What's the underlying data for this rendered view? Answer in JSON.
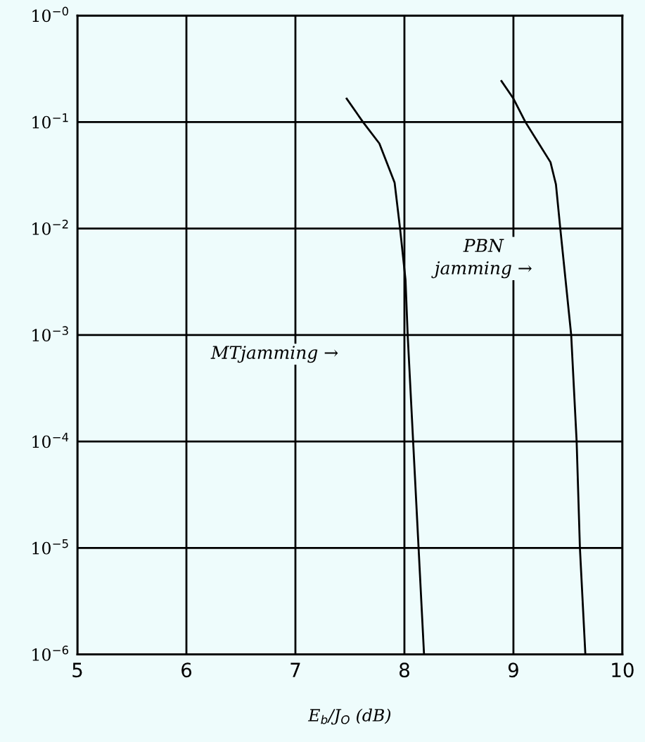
{
  "chart_data": {
    "type": "line",
    "xlabel": "E$_{b}$/J$_{O}$ (dB)",
    "log": "y",
    "grid": true,
    "marker": "none",
    "line_style": "solid",
    "xlim": [
      5,
      10
    ],
    "xticks": [
      5,
      6,
      7,
      8,
      9,
      10
    ],
    "ylim": [
      1e-06,
      1
    ],
    "yticks": [
      {
        "value": 1,
        "label": "10$^{−0}$"
      },
      {
        "value": 0.1,
        "label": "10$^{−1}$"
      },
      {
        "value": 0.01,
        "label": "10$^{−2}$"
      },
      {
        "value": 0.001,
        "label": "10$^{−3}$"
      },
      {
        "value": 0.0001,
        "label": "10$^{−4}$"
      },
      {
        "value": 1e-05,
        "label": "10$^{−5}$"
      },
      {
        "value": 1e-06,
        "label": "10$^{−6}$"
      }
    ],
    "series": [
      {
        "color": "#000000",
        "x": [
          7.47,
          7.62,
          7.77,
          7.91,
          7.96,
          8.01,
          8.03,
          8.08,
          8.13,
          8.18
        ],
        "values": [
          0.166,
          0.1,
          0.063,
          0.027,
          0.01,
          0.0033,
          0.001,
          0.0001,
          1e-05,
          1e-06
        ]
      },
      {
        "color": "#000000",
        "x": [
          8.89,
          9.0,
          9.11,
          9.34,
          9.39,
          9.43,
          9.53,
          9.58,
          9.61,
          9.66
        ],
        "values": [
          0.243,
          0.166,
          0.1,
          0.042,
          0.026,
          0.01,
          0.001,
          0.0001,
          1e-05,
          1e-06
        ]
      }
    ],
    "annotations": [
      "MTjamming →",
      "PBN\njamming →"
    ]
  }
}
